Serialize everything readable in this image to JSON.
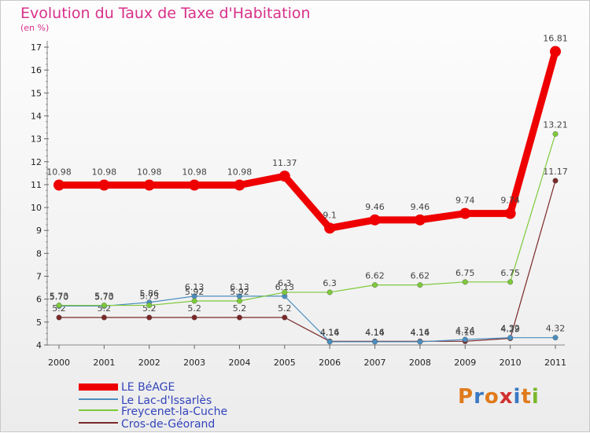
{
  "header": {
    "title": "Evolution du Taux de Taxe d'Habitation",
    "unit": "(en %)"
  },
  "brand": {
    "letters": [
      "P",
      "r",
      "o",
      "x",
      "i",
      "t",
      "i"
    ],
    "colors": [
      "#e07a1a",
      "#3a78c4",
      "#e07a1a",
      "#d23030",
      "#3a78c4",
      "#e07a1a",
      "#7ab82a"
    ]
  },
  "chart_data": {
    "type": "line",
    "x": [
      "2000",
      "2001",
      "2002",
      "2003",
      "2004",
      "2005",
      "2006",
      "2007",
      "2008",
      "2009",
      "2010",
      "2011"
    ],
    "ylim": [
      4,
      17
    ],
    "yticks": [
      "4",
      "5",
      "6",
      "7",
      "8",
      "9",
      "10",
      "11",
      "12",
      "13",
      "14",
      "15",
      "16",
      "17"
    ],
    "grid": false,
    "legend_position": "bottom-left",
    "series": [
      {
        "name": "Cros-de-Géorand",
        "color": "#7a2828",
        "values": [
          5.2,
          5.2,
          5.2,
          5.2,
          5.2,
          5.2,
          4.16,
          4.16,
          4.16,
          4.16,
          4.29,
          11.17
        ],
        "labels": [
          "5.2",
          "5.2",
          "5.2",
          "5.2",
          "5.2",
          "5.2",
          "4.16",
          "4.16",
          "4.16",
          "4.16",
          "4.29",
          "11.17"
        ]
      },
      {
        "name": "Le Lac-d'Issarlès",
        "color": "#4a8ec0",
        "values": [
          5.7,
          5.7,
          5.86,
          6.13,
          6.13,
          6.13,
          4.14,
          4.14,
          4.14,
          4.24,
          4.32,
          4.32
        ],
        "labels": [
          "5.70",
          "5.70",
          "5.86",
          "6.13",
          "6.13",
          "6.13",
          "4.14",
          "4.14",
          "4.14",
          "4.24",
          "4.32",
          "4.32"
        ]
      },
      {
        "name": "Freycenet-la-Cuche",
        "color": "#7dc93a",
        "values": [
          5.73,
          5.73,
          5.73,
          5.92,
          5.92,
          6.3,
          6.3,
          6.62,
          6.62,
          6.75,
          6.75,
          13.21
        ],
        "labels": [
          "5.73",
          "5.73",
          "5.73",
          "5.92",
          "5.92",
          "6.3",
          "6.3",
          "6.62",
          "6.62",
          "6.75",
          "6.75",
          "13.21"
        ]
      },
      {
        "name": "LE BéAGE",
        "color": "#ee0000",
        "values": [
          10.98,
          10.98,
          10.98,
          10.98,
          10.98,
          11.37,
          9.1,
          9.46,
          9.46,
          9.74,
          9.74,
          16.81
        ],
        "labels": [
          "10.98",
          "10.98",
          "10.98",
          "10.98",
          "10.98",
          "11.37",
          "9.1",
          "9.46",
          "9.46",
          "9.74",
          "9.74",
          "16.81"
        ]
      }
    ]
  },
  "legend": [
    {
      "label": "LE BéAGE",
      "color": "#ee0000"
    },
    {
      "label": "Le Lac-d'Issarlès",
      "color": "#4a8ec0"
    },
    {
      "label": "Freycenet-la-Cuche",
      "color": "#7dc93a"
    },
    {
      "label": "Cros-de-Géorand",
      "color": "#7a2828"
    }
  ]
}
